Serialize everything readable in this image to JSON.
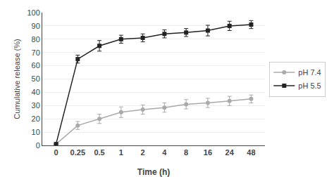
{
  "chart_data": {
    "type": "line",
    "xlabel": "Time (h)",
    "ylabel": "Cumulative release (%)",
    "categories": [
      "0",
      "0.25",
      "0.5",
      "1",
      "2",
      "4",
      "8",
      "16",
      "24",
      "48"
    ],
    "series": [
      {
        "name": "pH 7.4",
        "color": "#aaaaaa",
        "marker": "circle",
        "line_style": "solid",
        "values": [
          1,
          15,
          20,
          25,
          27,
          28.5,
          31,
          32,
          33.5,
          35
        ],
        "errors": [
          0,
          3,
          3.5,
          4,
          3.5,
          3.5,
          3.5,
          3.5,
          3.5,
          3
        ]
      },
      {
        "name": "pH 5.5",
        "color": "#222222",
        "marker": "square",
        "line_style": "solid",
        "values": [
          1,
          65,
          75,
          80,
          81,
          84,
          85,
          86.5,
          90,
          91
        ],
        "errors": [
          0,
          3,
          4,
          3,
          3,
          3,
          3,
          4,
          3.5,
          3
        ]
      }
    ],
    "ylim": [
      0,
      100
    ],
    "yticks": [
      0,
      10,
      20,
      30,
      40,
      50,
      60,
      70,
      80,
      90,
      100
    ],
    "grid": true,
    "legend": "right"
  }
}
